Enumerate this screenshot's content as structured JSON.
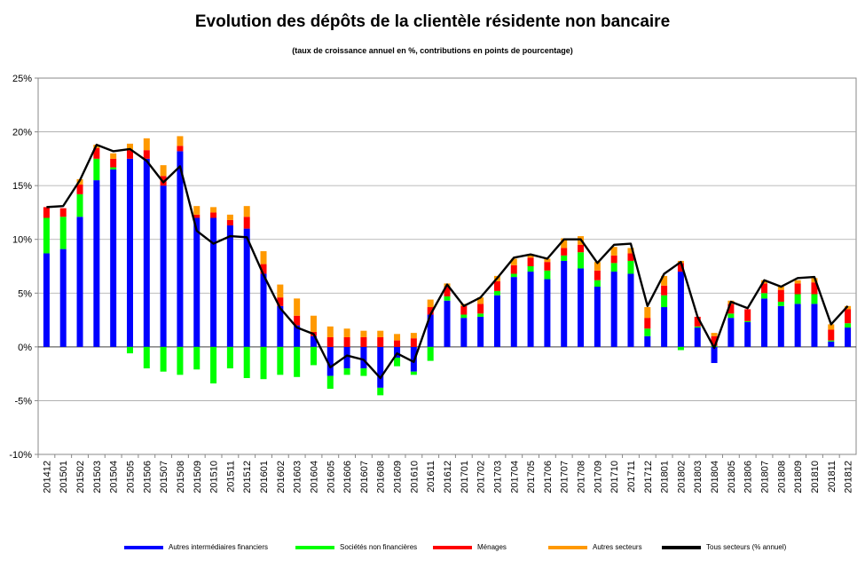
{
  "chart_data": {
    "type": "bar",
    "stacked": true,
    "title": "Evolution  des dépôts de la clientèle résidente non bancaire",
    "subtitle": "(taux de croissance annuel en %, contributions en points de pourcentage)",
    "ylim": [
      -10,
      25
    ],
    "yticks": [
      25,
      20,
      15,
      10,
      5,
      0,
      -5,
      -10
    ],
    "ytick_labels": [
      "25%",
      "20%",
      "15%",
      "10%",
      "5%",
      "0%",
      "-5%",
      "-10%"
    ],
    "grid": true,
    "legend_position": "bottom",
    "categories": [
      "201412",
      "201501",
      "201502",
      "201503",
      "201504",
      "201505",
      "201506",
      "201507",
      "201508",
      "201509",
      "201510",
      "201511",
      "201512",
      "201601",
      "201602",
      "201603",
      "201604",
      "201605",
      "201606",
      "201607",
      "201608",
      "201609",
      "201610",
      "201611",
      "201612",
      "201701",
      "201702",
      "201703",
      "201704",
      "201705",
      "201706",
      "201707",
      "201708",
      "201709",
      "201710",
      "201711",
      "201712",
      "201801",
      "201802",
      "201803",
      "201804",
      "201805",
      "201806",
      "201807",
      "201808",
      "201809",
      "201810",
      "201811",
      "201812"
    ],
    "series": [
      {
        "name": "Autres intermédiaires financiers",
        "color": "#0000FF",
        "values": [
          8.7,
          9.1,
          12.1,
          15.5,
          16.5,
          17.5,
          17.5,
          15.0,
          18.2,
          12.0,
          12.0,
          11.3,
          11.0,
          6.8,
          3.8,
          2.0,
          1.0,
          -2.7,
          -2.0,
          -2.0,
          -3.8,
          -1.0,
          -2.3,
          3.0,
          4.3,
          2.7,
          2.8,
          4.8,
          6.5,
          7.0,
          6.3,
          8.0,
          7.3,
          5.6,
          7.0,
          6.8,
          1.0,
          3.7,
          7.0,
          1.8,
          -1.5,
          2.7,
          2.3,
          4.5,
          3.8,
          4.0,
          4.0,
          0.5,
          1.8
        ]
      },
      {
        "name": "Sociétés non financières",
        "color": "#00FF00",
        "values": [
          3.3,
          3.0,
          2.1,
          2.0,
          0.2,
          -0.6,
          -2.0,
          -2.3,
          -2.6,
          -2.1,
          -3.4,
          -2.0,
          -2.9,
          -3.0,
          -2.6,
          -2.8,
          -1.7,
          -1.2,
          -0.6,
          -0.7,
          -0.7,
          -0.8,
          -0.3,
          -1.3,
          0.4,
          0.3,
          0.3,
          0.4,
          0.3,
          0.5,
          0.8,
          0.5,
          1.5,
          0.6,
          0.8,
          1.2,
          0.7,
          1.1,
          -0.3,
          0.1,
          0.1,
          0.4,
          0.1,
          0.5,
          0.4,
          0.9,
          0.9,
          0.1,
          0.4
        ]
      },
      {
        "name": "Ménages",
        "color": "#FF0000",
        "values": [
          1.0,
          0.8,
          0.9,
          1.0,
          0.8,
          0.8,
          0.8,
          0.9,
          0.5,
          0.3,
          0.5,
          0.5,
          1.1,
          0.9,
          0.8,
          0.9,
          0.4,
          0.9,
          0.9,
          0.9,
          0.9,
          0.6,
          0.8,
          0.7,
          0.9,
          0.8,
          0.9,
          0.9,
          0.8,
          0.8,
          0.8,
          0.7,
          0.7,
          0.9,
          0.7,
          0.7,
          1.0,
          0.9,
          0.8,
          0.9,
          0.9,
          0.9,
          1.1,
          0.9,
          1.1,
          1.0,
          1.1,
          1.0,
          1.3
        ]
      },
      {
        "name": "Autres secteurs",
        "color": "#FF9900",
        "values": [
          0.0,
          0.0,
          0.5,
          0.3,
          0.5,
          0.6,
          1.1,
          1.0,
          0.9,
          0.8,
          0.5,
          0.5,
          1.0,
          1.2,
          1.2,
          1.6,
          1.5,
          1.0,
          0.8,
          0.6,
          0.6,
          0.6,
          0.5,
          0.7,
          0.3,
          0.2,
          0.6,
          0.5,
          0.6,
          0.3,
          0.3,
          0.9,
          0.8,
          0.8,
          0.8,
          0.5,
          1.0,
          0.9,
          0.2,
          0.0,
          0.3,
          0.3,
          0.0,
          0.3,
          0.3,
          0.3,
          0.4,
          0.5,
          0.3
        ]
      },
      {
        "name": "Tous secteurs (% annuel)",
        "color": "#000000",
        "kind": "line",
        "values": [
          13.0,
          13.1,
          15.5,
          18.8,
          18.2,
          18.4,
          17.3,
          15.3,
          16.8,
          10.8,
          9.6,
          10.3,
          10.2,
          6.7,
          3.6,
          1.8,
          1.2,
          -1.9,
          -0.8,
          -1.2,
          -2.9,
          -0.6,
          -1.4,
          3.0,
          5.8,
          3.8,
          4.6,
          6.4,
          8.3,
          8.6,
          8.2,
          10.0,
          10.0,
          7.8,
          9.5,
          9.6,
          3.8,
          6.8,
          7.9,
          2.8,
          -0.1,
          4.2,
          3.6,
          6.2,
          5.6,
          6.4,
          6.5,
          2.1,
          3.8
        ]
      }
    ]
  },
  "legend": {
    "items": [
      {
        "label": "Autres intermédiaires financiers",
        "color": "#0000FF"
      },
      {
        "label": "Sociétés non financières",
        "color": "#00FF00"
      },
      {
        "label": "Ménages",
        "color": "#FF0000"
      },
      {
        "label": "Autres secteurs",
        "color": "#FF9900"
      },
      {
        "label": "Tous secteurs (% annuel)",
        "color": "#000000"
      }
    ]
  }
}
